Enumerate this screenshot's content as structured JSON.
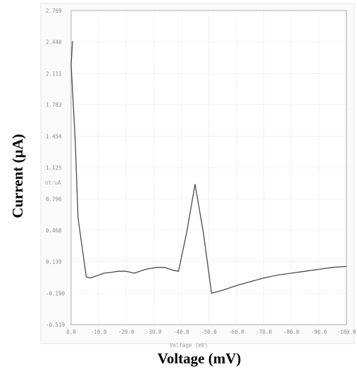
{
  "chart_data": {
    "type": "line",
    "xlabel": "Voltage (mV)",
    "ylabel": "Current (µA)",
    "x_axis_inner_label": "Voltage (mV)",
    "y_axis_inner_label": "nt:uA",
    "x_ticks": [
      {
        "value": 0,
        "label": "0.0"
      },
      {
        "value": -10,
        "label": "-10.0"
      },
      {
        "value": -20,
        "label": "-20.0"
      },
      {
        "value": -30,
        "label": "-30.0"
      },
      {
        "value": -40,
        "label": "-40.0"
      },
      {
        "value": -50,
        "label": "-50.0"
      },
      {
        "value": -60,
        "label": "-60.0"
      },
      {
        "value": -70,
        "label": "-70.0"
      },
      {
        "value": -80,
        "label": "-80.0"
      },
      {
        "value": -90,
        "label": "-90.0"
      },
      {
        "value": -100,
        "label": "-100.0"
      }
    ],
    "y_ticks": [
      {
        "value": 2.769,
        "label": "2.769"
      },
      {
        "value": 2.44,
        "label": "2.440"
      },
      {
        "value": 2.111,
        "label": "2.111"
      },
      {
        "value": 1.783,
        "label": "1.783"
      },
      {
        "value": 1.454,
        "label": "1.454"
      },
      {
        "value": 1.125,
        "label": "1.125"
      },
      {
        "value": 0.796,
        "label": "0.796"
      },
      {
        "value": 0.468,
        "label": "0.468"
      },
      {
        "value": 0.139,
        "label": "0.139"
      },
      {
        "value": -0.19,
        "label": "-0.190"
      },
      {
        "value": -0.519,
        "label": "-0.519"
      }
    ],
    "xlim": [
      0,
      -100
    ],
    "ylim": [
      -0.519,
      2.769
    ],
    "grid": true,
    "series": [
      {
        "color": "#4a4a4a",
        "x": [
          -0.5,
          0,
          -1.5,
          -2.5,
          -5.5,
          -7,
          -10,
          -12,
          -15,
          -17,
          -20,
          -23,
          -27,
          -31,
          -34,
          -37,
          -39,
          -42,
          -45,
          -48,
          -51,
          -55,
          -60,
          -65,
          -70,
          -75,
          -80,
          -85,
          -90,
          -95,
          -100
        ],
        "y": [
          2.45,
          2.2,
          1.4,
          0.6,
          -0.02,
          -0.03,
          0.0,
          0.02,
          0.03,
          0.04,
          0.04,
          0.02,
          0.06,
          0.08,
          0.08,
          0.05,
          0.04,
          0.45,
          0.95,
          0.45,
          -0.19,
          -0.16,
          -0.11,
          -0.07,
          -0.03,
          0.0,
          0.02,
          0.04,
          0.06,
          0.08,
          0.09
        ]
      }
    ]
  }
}
